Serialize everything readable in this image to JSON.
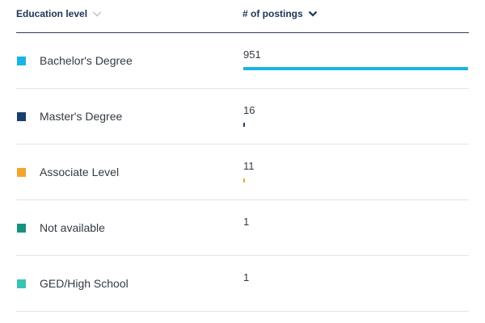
{
  "header": {
    "col_education": "Education level",
    "col_postings": "# of postings"
  },
  "rows": [
    {
      "label": "Bachelor's Degree",
      "count": "951",
      "color": "#1ab3e6",
      "fraction": 1.0
    },
    {
      "label": "Master's Degree",
      "count": "16",
      "color": "#1b3f6b",
      "fraction": 0.0168
    },
    {
      "label": "Associate Level",
      "count": "11",
      "color": "#f1a52c",
      "fraction": 0.0116
    },
    {
      "label": "Not available",
      "count": "1",
      "color": "#17927f",
      "fraction": 0.0011
    },
    {
      "label": "GED/High School",
      "count": "1",
      "color": "#3cc1b5",
      "fraction": 0.0011
    }
  ],
  "icons": {
    "education_sort": "chevron-down-icon",
    "postings_sort": "chevron-down-icon"
  }
}
